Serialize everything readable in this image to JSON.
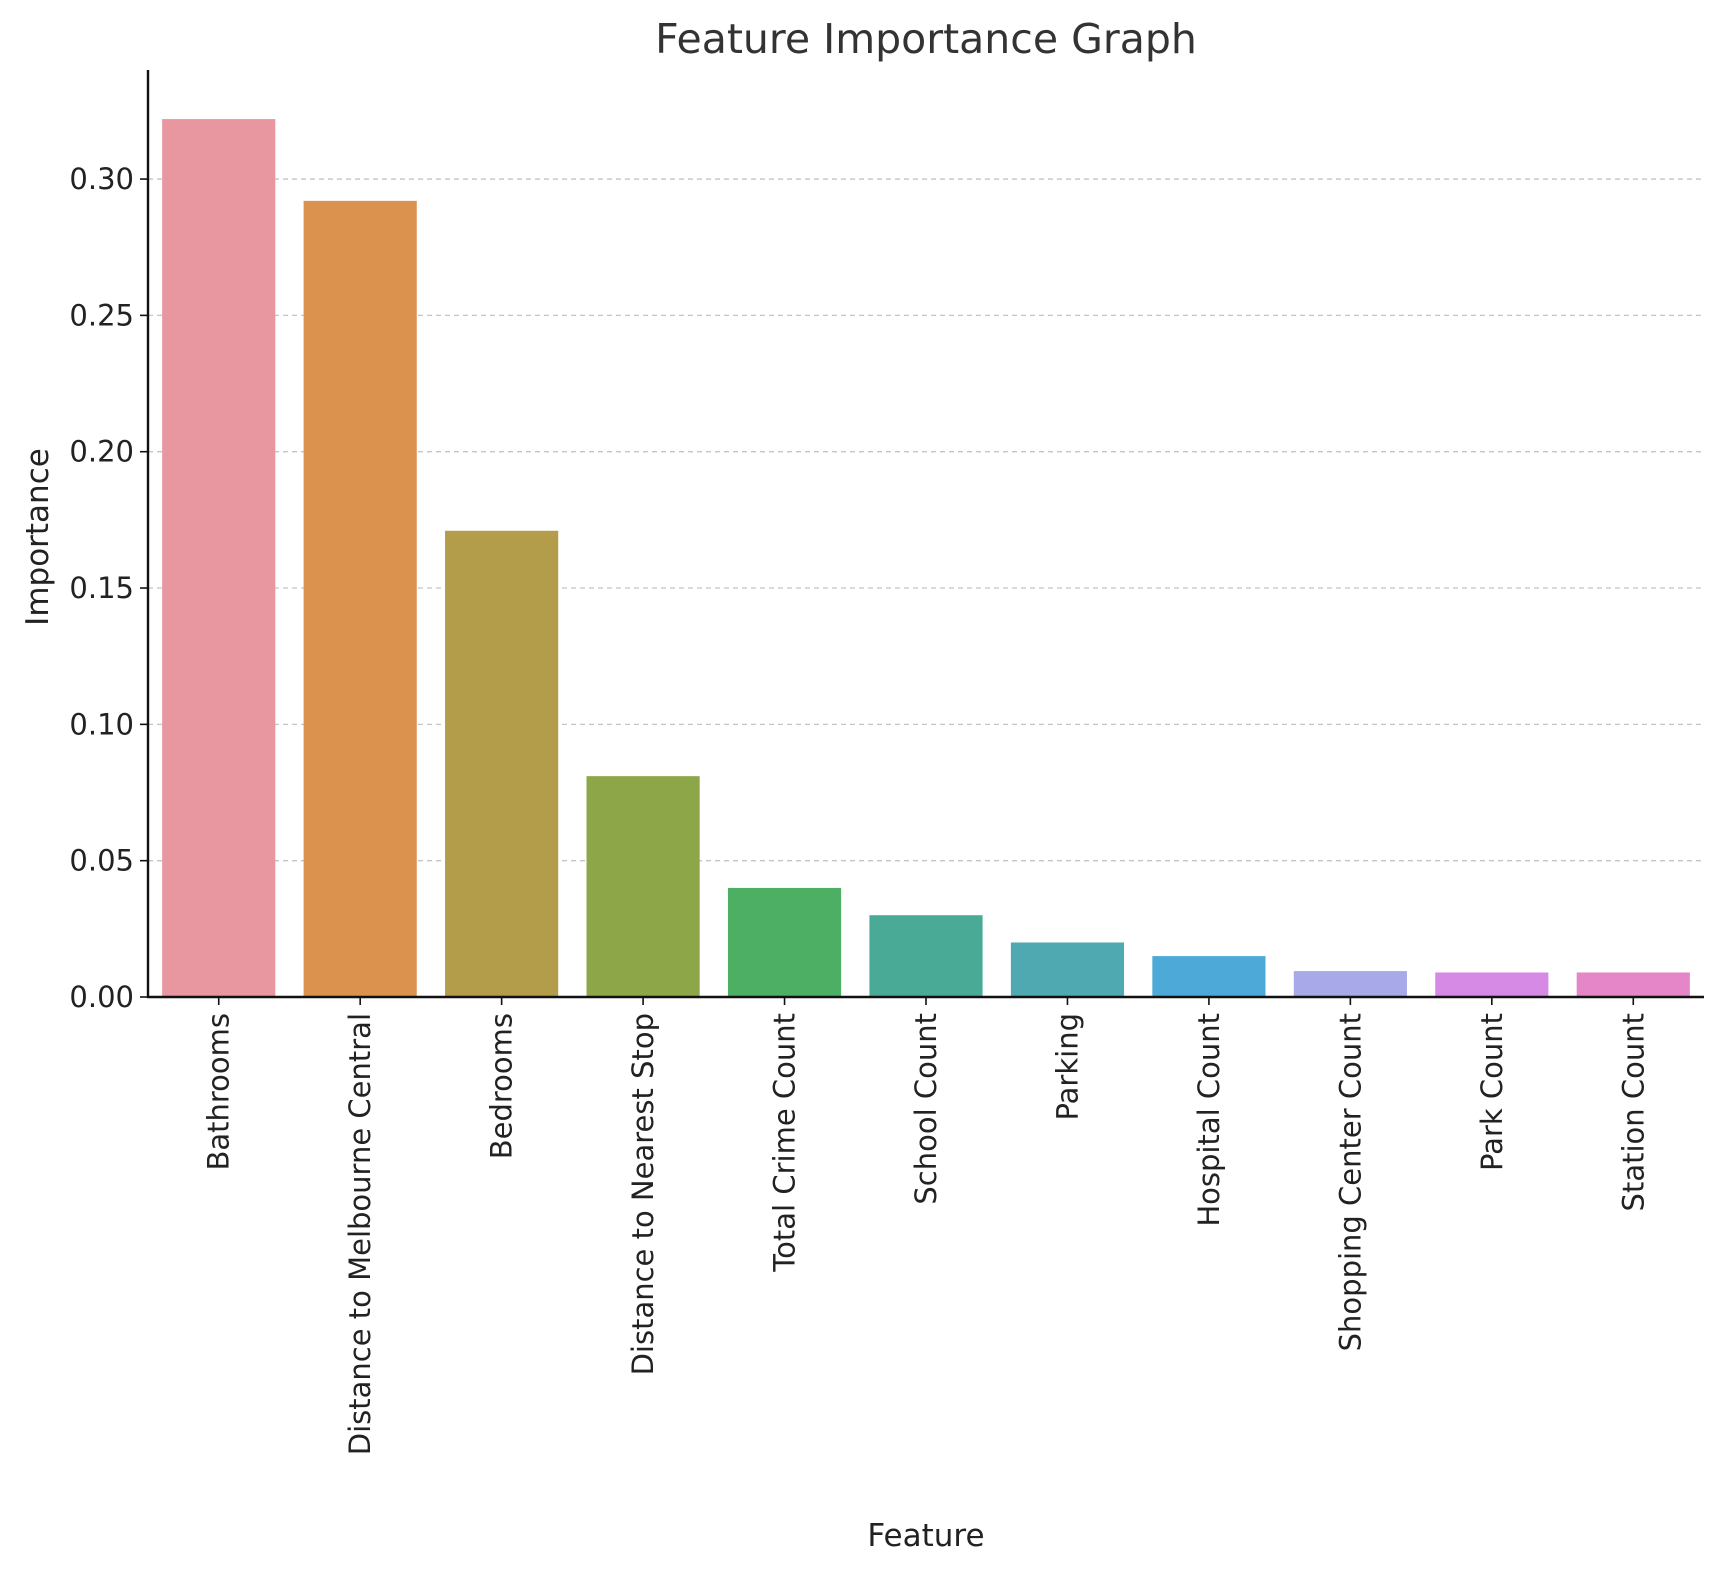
{
  "chart_data": {
    "type": "bar",
    "title": "Feature Importance Graph",
    "xlabel": "Feature",
    "ylabel": "Importance",
    "ylim": [
      0,
      0.34
    ],
    "yticks": [
      0.0,
      0.05,
      0.1,
      0.15,
      0.2,
      0.25,
      0.3
    ],
    "ytick_labels": [
      "0.00",
      "0.05",
      "0.10",
      "0.15",
      "0.20",
      "0.25",
      "0.30"
    ],
    "grid": "y-dashed",
    "categories": [
      "Bathrooms",
      "Distance to Melbourne Central",
      "Bedrooms",
      "Distance to Nearest Stop",
      "Total Crime Count",
      "School Count",
      "Parking",
      "Hospital Count",
      "Shopping Center Count",
      "Park Count",
      "Station Count"
    ],
    "values": [
      0.322,
      0.292,
      0.171,
      0.081,
      0.04,
      0.03,
      0.02,
      0.015,
      0.0095,
      0.009,
      0.009
    ],
    "colors": [
      "#e8969f",
      "#dc924f",
      "#b39d4a",
      "#8ca648",
      "#4caf64",
      "#49ab96",
      "#4ea9b0",
      "#4daad8",
      "#a7a9e8",
      "#d68ae6",
      "#e586c8"
    ]
  }
}
